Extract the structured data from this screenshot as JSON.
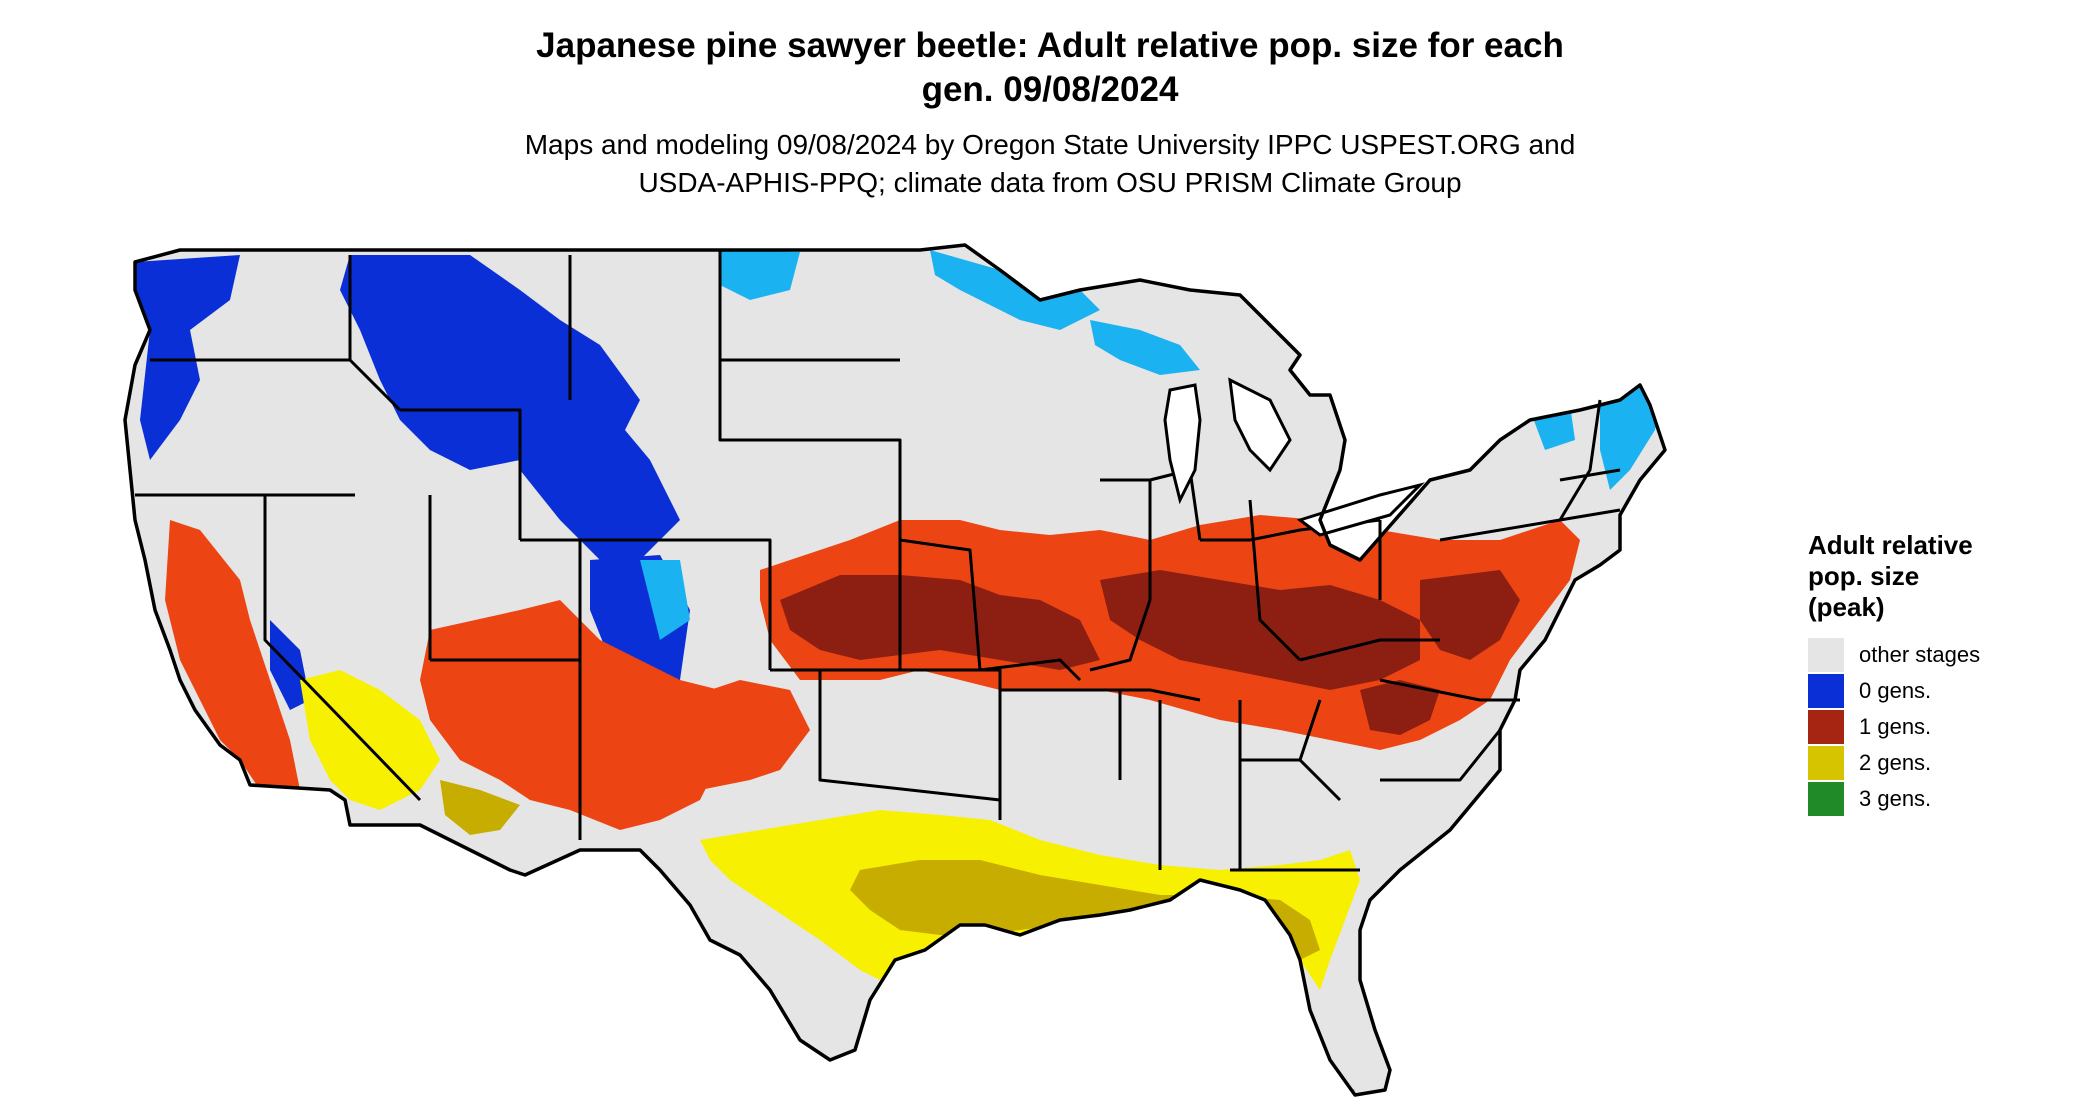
{
  "title": {
    "line1": "Japanese pine sawyer beetle: Adult relative pop. size for each",
    "line2": "gen. 09/08/2024"
  },
  "subtitle": {
    "line1": "Maps and modeling 09/08/2024 by Oregon State University IPPC USPEST.ORG and",
    "line2": "USDA-APHIS-PPQ; climate data from OSU PRISM Climate Group"
  },
  "legend": {
    "title_line1": "Adult relative",
    "title_line2": "pop. size",
    "title_line3": "(peak)",
    "items": [
      {
        "label": "other stages",
        "color": "#e5e5e5"
      },
      {
        "label": "0 gens.",
        "color": "#0a2fd6"
      },
      {
        "label": "1 gens.",
        "color": "#a52512"
      },
      {
        "label": "2 gens.",
        "color": "#d7c400"
      },
      {
        "label": "3 gens.",
        "color": "#218a28"
      }
    ]
  },
  "map": {
    "region": "contiguous-united-states",
    "land_color": "#e5e5e5",
    "border_color": "#000000",
    "zone_colors": {
      "zero_gens": "#0a2fd6",
      "zero_gens_light": "#1ab2f0",
      "one_gen_light": "#ec4513",
      "one_gen": "#8c1f12",
      "two_gens_light": "#f7f000",
      "two_gens": "#c6ad00",
      "three_gens": "#218a28"
    }
  }
}
